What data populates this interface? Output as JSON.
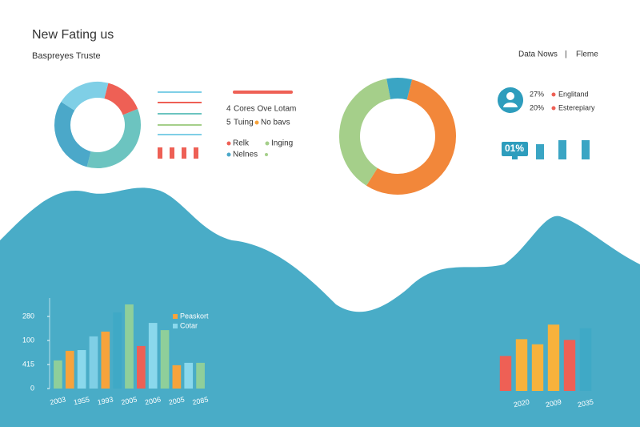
{
  "header": {
    "title": "New Fating us",
    "subtitle": "Baspreyes Truste",
    "nav": [
      "Data Nows",
      "|",
      "Fleme"
    ]
  },
  "legend_mid": {
    "line1_num": "4",
    "line1": "Cores Ove Lotam",
    "line2_num": "5",
    "line2": "Tuing",
    "line2b": "No bavs",
    "row3a": "Relk",
    "row3b": "Inging",
    "row4": "Nelnes"
  },
  "profile": {
    "stat1": "27%",
    "name1": "Englitand",
    "stat2": "20%",
    "name2": "Esterepiary",
    "badge": "01%"
  },
  "chart_data": [
    {
      "type": "donut",
      "values": [
        15,
        35,
        30,
        20
      ],
      "colors": [
        "#ee6055",
        "#6cc4c0",
        "#4ba8c9",
        "#7fcfe6"
      ]
    },
    {
      "type": "donut",
      "values": [
        55,
        38,
        7
      ],
      "colors": [
        "#f2873a",
        "#a5cf8a",
        "#3aa5c4"
      ]
    },
    {
      "type": "bar",
      "categories": [
        "2003",
        null,
        "1955",
        null,
        "1993",
        null,
        "2005",
        null,
        "2006",
        null,
        "2005",
        null,
        "2085"
      ],
      "values": [
        117,
        157,
        160,
        217,
        237,
        317,
        350,
        177,
        273,
        243,
        97,
        107,
        107
      ],
      "colors": [
        "#8fcf9a",
        "#f7a33c",
        "#8ad8ec",
        "#7fcfe6",
        "#f7a33c",
        "#3fa9c6",
        "#8fcf9a",
        "#ee6055",
        "#8ad8ec",
        "#8fcf9a",
        "#f7a33c",
        "#8ad8ec",
        "#8fcf9a"
      ],
      "ylim": [
        0,
        350
      ],
      "yticks": [
        0,
        {
          "value": 100,
          "label": "415"
        },
        {
          "value": 200,
          "label": "100"
        },
        {
          "value": 300,
          "label": "280"
        }
      ],
      "legend": [
        {
          "name": "Peaskort",
          "color": "#f7a33c"
        },
        {
          "name": "Cotar",
          "color": "#8ad8ec"
        }
      ]
    },
    {
      "type": "bar",
      "categories": [
        null,
        "2020",
        null,
        "2009",
        null,
        "2035"
      ],
      "values": [
        48,
        71,
        64,
        91,
        70,
        86
      ],
      "colors": [
        "#ee6055",
        "#f7b23c",
        "#f7b23c",
        "#f7b23c",
        "#ee6055",
        "#3fa9c6"
      ],
      "ylim": [
        0,
        100
      ]
    }
  ]
}
